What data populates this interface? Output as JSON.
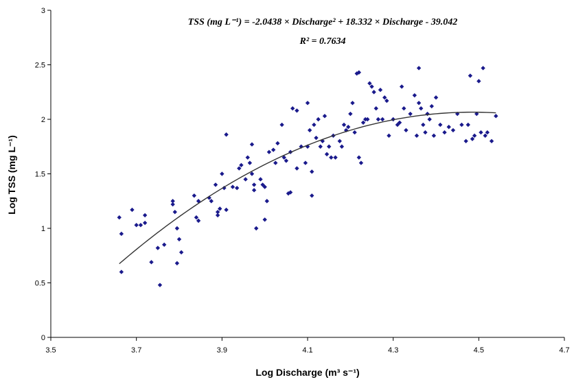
{
  "chart_data": {
    "type": "scatter",
    "title": "",
    "equation_line1": "TSS (mg L⁻¹) = -2.0438 × Discharge² + 18.332 × Discharge - 39.042",
    "equation_line2": "R² = 0.7634",
    "xlabel": "Log Discharge (m³ s⁻¹)",
    "ylabel": "Log TSS (mg L⁻¹)",
    "xlim": [
      3.5,
      4.7
    ],
    "ylim": [
      0,
      3
    ],
    "x_ticks": [
      "3.5",
      "3.7",
      "3.9",
      "4.1",
      "4.3",
      "4.5",
      "4.7"
    ],
    "y_ticks": [
      "0",
      "0.5",
      "1",
      "1.5",
      "2",
      "2.5",
      "3"
    ],
    "grid": false,
    "legend": "none",
    "marker_color": "#1a1a8c",
    "trendline": {
      "type": "polynomial",
      "a": -2.0438,
      "b": 18.332,
      "c": -39.042,
      "x_range": [
        3.66,
        4.54
      ],
      "color": "#333333"
    },
    "series": [
      {
        "points": [
          [
            3.66,
            1.1
          ],
          [
            3.665,
            0.95
          ],
          [
            3.665,
            0.6
          ],
          [
            3.69,
            1.17
          ],
          [
            3.7,
            1.03
          ],
          [
            3.71,
            1.03
          ],
          [
            3.72,
            1.05
          ],
          [
            3.72,
            1.12
          ],
          [
            3.735,
            0.69
          ],
          [
            3.75,
            0.82
          ],
          [
            3.755,
            0.48
          ],
          [
            3.765,
            0.85
          ],
          [
            3.785,
            1.25
          ],
          [
            3.785,
            1.22
          ],
          [
            3.79,
            1.15
          ],
          [
            3.795,
            1.0
          ],
          [
            3.795,
            0.68
          ],
          [
            3.8,
            0.9
          ],
          [
            3.805,
            0.78
          ],
          [
            3.835,
            1.3
          ],
          [
            3.84,
            1.1
          ],
          [
            3.845,
            1.25
          ],
          [
            3.845,
            1.07
          ],
          [
            3.87,
            1.28
          ],
          [
            3.875,
            1.25
          ],
          [
            3.885,
            1.4
          ],
          [
            3.89,
            1.15
          ],
          [
            3.89,
            1.12
          ],
          [
            3.895,
            1.18
          ],
          [
            3.9,
            1.5
          ],
          [
            3.905,
            1.37
          ],
          [
            3.91,
            1.17
          ],
          [
            3.91,
            1.86
          ],
          [
            3.925,
            1.38
          ],
          [
            3.935,
            1.37
          ],
          [
            3.94,
            1.55
          ],
          [
            3.945,
            1.58
          ],
          [
            3.955,
            1.45
          ],
          [
            3.96,
            1.65
          ],
          [
            3.965,
            1.6
          ],
          [
            3.97,
            1.77
          ],
          [
            3.97,
            1.5
          ],
          [
            3.975,
            1.35
          ],
          [
            3.975,
            1.4
          ],
          [
            3.98,
            1.0
          ],
          [
            3.99,
            1.45
          ],
          [
            3.995,
            1.4
          ],
          [
            4.0,
            1.38
          ],
          [
            4.0,
            1.08
          ],
          [
            4.005,
            1.25
          ],
          [
            4.01,
            1.7
          ],
          [
            4.02,
            1.72
          ],
          [
            4.025,
            1.6
          ],
          [
            4.03,
            1.78
          ],
          [
            4.04,
            1.95
          ],
          [
            4.045,
            1.65
          ],
          [
            4.05,
            1.62
          ],
          [
            4.055,
            1.32
          ],
          [
            4.06,
            1.7
          ],
          [
            4.06,
            1.33
          ],
          [
            4.065,
            2.1
          ],
          [
            4.075,
            2.08
          ],
          [
            4.075,
            1.55
          ],
          [
            4.085,
            1.75
          ],
          [
            4.095,
            1.6
          ],
          [
            4.1,
            2.15
          ],
          [
            4.1,
            1.75
          ],
          [
            4.105,
            1.9
          ],
          [
            4.11,
            1.52
          ],
          [
            4.11,
            1.3
          ],
          [
            4.115,
            1.95
          ],
          [
            4.12,
            1.83
          ],
          [
            4.125,
            2.0
          ],
          [
            4.13,
            1.75
          ],
          [
            4.135,
            1.8
          ],
          [
            4.14,
            2.03
          ],
          [
            4.145,
            1.68
          ],
          [
            4.15,
            1.75
          ],
          [
            4.155,
            1.65
          ],
          [
            4.16,
            1.85
          ],
          [
            4.165,
            1.65
          ],
          [
            4.175,
            1.8
          ],
          [
            4.18,
            1.75
          ],
          [
            4.185,
            1.95
          ],
          [
            4.19,
            1.9
          ],
          [
            4.195,
            1.93
          ],
          [
            4.2,
            2.05
          ],
          [
            4.205,
            2.15
          ],
          [
            4.21,
            1.88
          ],
          [
            4.215,
            2.42
          ],
          [
            4.22,
            2.43
          ],
          [
            4.22,
            1.65
          ],
          [
            4.225,
            1.6
          ],
          [
            4.23,
            1.97
          ],
          [
            4.235,
            2.0
          ],
          [
            4.24,
            2.0
          ],
          [
            4.245,
            2.33
          ],
          [
            4.25,
            2.3
          ],
          [
            4.255,
            2.25
          ],
          [
            4.26,
            2.1
          ],
          [
            4.265,
            2.0
          ],
          [
            4.27,
            2.27
          ],
          [
            4.275,
            2.0
          ],
          [
            4.28,
            2.2
          ],
          [
            4.285,
            2.17
          ],
          [
            4.29,
            1.85
          ],
          [
            4.3,
            2.0
          ],
          [
            4.31,
            1.95
          ],
          [
            4.315,
            1.97
          ],
          [
            4.32,
            2.3
          ],
          [
            4.325,
            2.1
          ],
          [
            4.33,
            1.9
          ],
          [
            4.34,
            2.05
          ],
          [
            4.35,
            2.22
          ],
          [
            4.355,
            1.85
          ],
          [
            4.36,
            2.47
          ],
          [
            4.36,
            2.15
          ],
          [
            4.365,
            2.1
          ],
          [
            4.37,
            1.95
          ],
          [
            4.375,
            1.88
          ],
          [
            4.38,
            2.05
          ],
          [
            4.385,
            2.0
          ],
          [
            4.39,
            2.12
          ],
          [
            4.395,
            1.85
          ],
          [
            4.4,
            2.2
          ],
          [
            4.41,
            1.95
          ],
          [
            4.42,
            1.88
          ],
          [
            4.43,
            1.93
          ],
          [
            4.44,
            1.9
          ],
          [
            4.45,
            2.05
          ],
          [
            4.46,
            1.95
          ],
          [
            4.47,
            1.8
          ],
          [
            4.475,
            1.95
          ],
          [
            4.48,
            2.4
          ],
          [
            4.485,
            1.82
          ],
          [
            4.49,
            1.85
          ],
          [
            4.495,
            2.05
          ],
          [
            4.5,
            2.35
          ],
          [
            4.505,
            1.88
          ],
          [
            4.51,
            2.47
          ],
          [
            4.515,
            1.85
          ],
          [
            4.52,
            1.88
          ],
          [
            4.53,
            1.8
          ],
          [
            4.54,
            2.03
          ]
        ]
      }
    ]
  }
}
